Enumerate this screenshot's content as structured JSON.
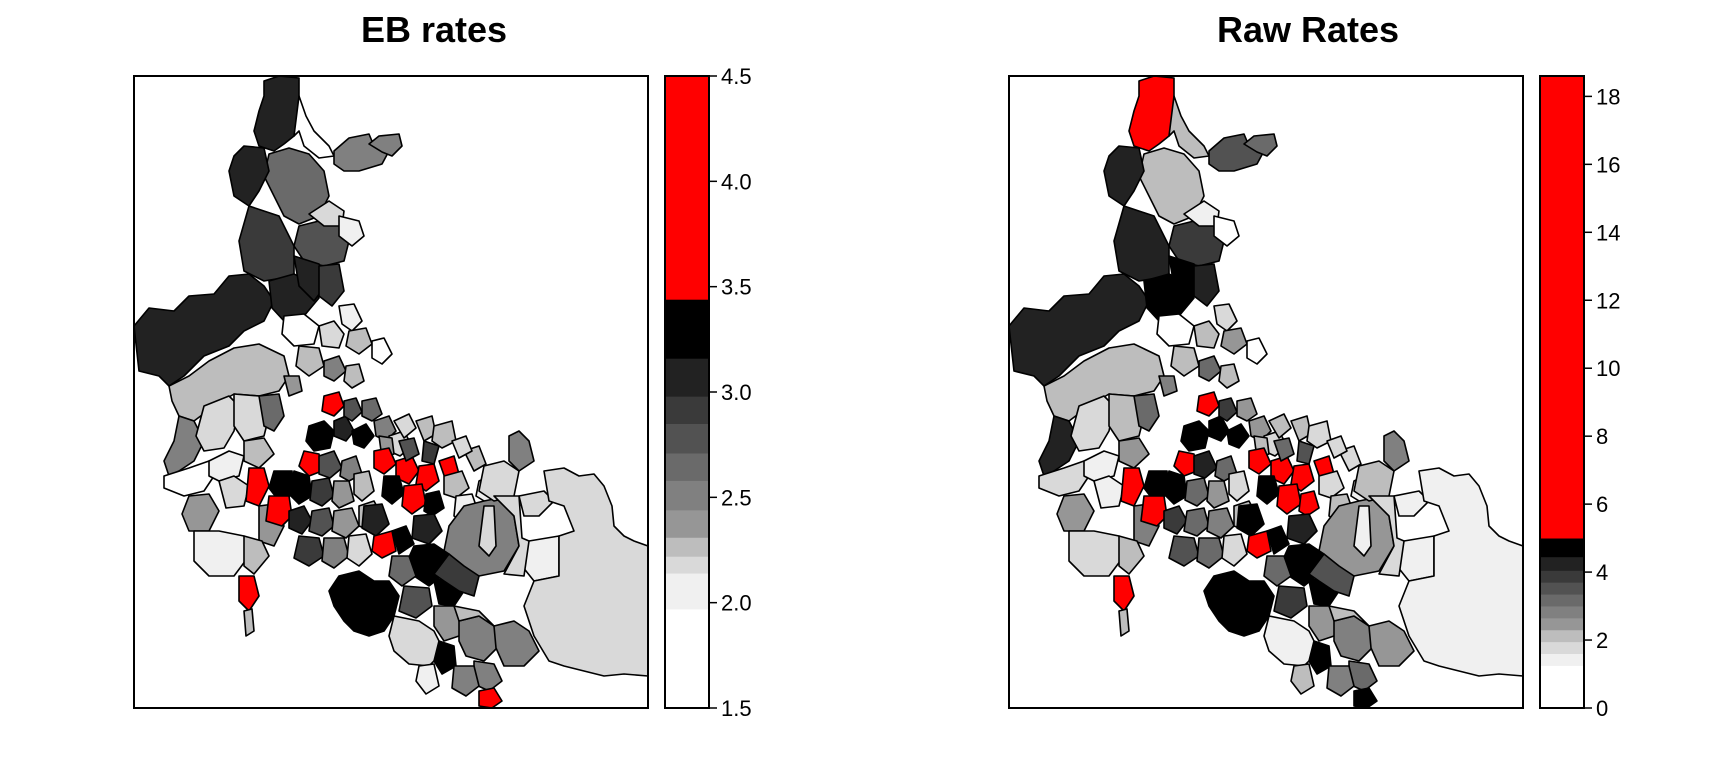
{
  "figure": {
    "panels": [
      {
        "title": "EB rates",
        "legend": {
          "ticks": [
            "1.5",
            "2.0",
            "2.5",
            "3.0",
            "3.5",
            "4.0",
            "4.5"
          ],
          "tick_values": [
            1.5,
            2.0,
            2.5,
            3.0,
            3.5,
            4.0,
            4.5
          ],
          "range": [
            1.5,
            4.5
          ],
          "breaks": [
            1.5,
            1.97,
            2.14,
            2.22,
            2.31,
            2.44,
            2.58,
            2.71,
            2.85,
            2.98,
            3.16,
            3.44,
            4.53
          ],
          "colors": [
            "#ffffff",
            "#f0f0f0",
            "#d9d9d9",
            "#bdbdbd",
            "#969696",
            "#808080",
            "#6a6a6a",
            "#525252",
            "#3a3a3a",
            "#222222",
            "#000000",
            "#ff0000"
          ]
        }
      },
      {
        "title": "Raw Rates",
        "legend": {
          "ticks": [
            "0",
            "2",
            "4",
            "6",
            "8",
            "10",
            "12",
            "14",
            "16",
            "18"
          ],
          "tick_values": [
            0,
            2,
            4,
            6,
            8,
            10,
            12,
            14,
            16,
            18
          ],
          "range": [
            0,
            18.6
          ],
          "breaks": [
            0,
            1.25,
            1.6,
            1.95,
            2.3,
            2.65,
            3.0,
            3.35,
            3.7,
            4.05,
            4.45,
            5.0,
            18.6
          ],
          "colors": [
            "#ffffff",
            "#f0f0f0",
            "#d9d9d9",
            "#bdbdbd",
            "#969696",
            "#808080",
            "#6a6a6a",
            "#525252",
            "#3a3a3a",
            "#222222",
            "#000000",
            "#ff0000"
          ]
        }
      }
    ]
  }
}
